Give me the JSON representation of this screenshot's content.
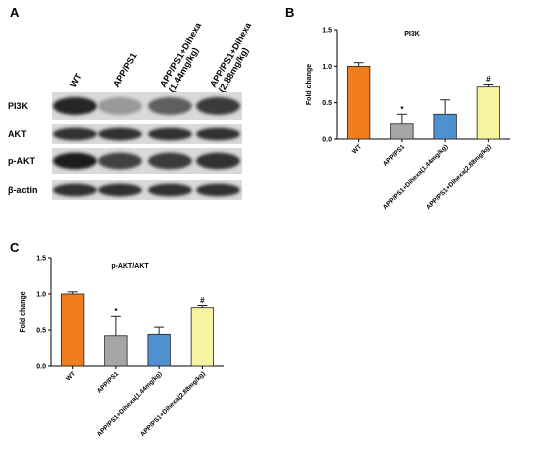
{
  "panels": {
    "A": "A",
    "B": "B",
    "C": "C"
  },
  "blot": {
    "lanes": [
      "WT",
      "APP/PS1",
      "APP/PS1+Dihexa (1.44mg/kg)",
      "APP/PS1+Dihexa (2.88mg/kg)"
    ],
    "lane_lines": [
      [
        "WT"
      ],
      [
        "APP/PS1"
      ],
      [
        "APP/PS1+Dihexa",
        "(1.44mg/kg)"
      ],
      [
        "APP/PS1+Dihexa",
        "(2.88mg/kg)"
      ]
    ],
    "rows": [
      {
        "label": "PI3K",
        "intensity": [
          0.85,
          0.25,
          0.55,
          0.75
        ]
      },
      {
        "label": "AKT",
        "intensity": [
          0.8,
          0.8,
          0.8,
          0.8
        ]
      },
      {
        "label": "p-AKT",
        "intensity": [
          0.9,
          0.7,
          0.75,
          0.8
        ]
      },
      {
        "label": "β-actin",
        "intensity": [
          0.8,
          0.8,
          0.8,
          0.8
        ]
      }
    ]
  },
  "chart_data": [
    {
      "type": "bar",
      "title": "PI3K",
      "ylabel": "Fold change",
      "xlabel": "",
      "ylim": [
        0,
        1.5
      ],
      "yticks": [
        "0.0",
        "0.5",
        "1.0",
        "1.5"
      ],
      "categories": [
        "WT",
        "APP/PS1",
        "APP/PS1+Dihexa(1.44mg/kg)",
        "APP/PS1+Dihexa(2.88mg/kg)"
      ],
      "values": [
        1.0,
        0.21,
        0.34,
        0.72
      ],
      "errors": [
        0.05,
        0.13,
        0.2,
        0.03
      ],
      "colors": [
        "#f07d1e",
        "#a6a6a8",
        "#4f90d1",
        "#f8f3a0"
      ],
      "annotations": [
        "",
        "*",
        "",
        "#"
      ]
    },
    {
      "type": "bar",
      "title": "p-AKT/AKT",
      "ylabel": "Fold change",
      "xlabel": "",
      "ylim": [
        0,
        1.5
      ],
      "yticks": [
        "0.0",
        "0.5",
        "1.0",
        "1.5"
      ],
      "categories": [
        "WT",
        "APP/PS1",
        "APP/PS1+Dihexa(1.44mg/kg)",
        "APP/PS1+Dihexa(2.88mg/kg)"
      ],
      "values": [
        1.0,
        0.42,
        0.44,
        0.81
      ],
      "errors": [
        0.03,
        0.27,
        0.1,
        0.03
      ],
      "colors": [
        "#f07d1e",
        "#a6a6a8",
        "#4f90d1",
        "#f8f3a0"
      ],
      "annotations": [
        "",
        "*",
        "",
        "#"
      ]
    }
  ]
}
